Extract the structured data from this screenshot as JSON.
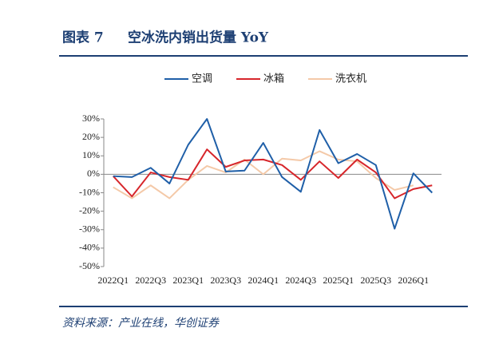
{
  "figure_label": "图表 7",
  "source": "资料来源：产业在线，华创证券",
  "chart_data": {
    "type": "line",
    "title": "空冰洗内销出货量 YoY",
    "categories": [
      "2022Q1",
      null,
      "2022Q3",
      null,
      "2023Q1",
      null,
      "2023Q3",
      null,
      "2024Q1",
      null,
      "2024Q3",
      null,
      "2025Q1",
      null,
      "2025Q3",
      null,
      "2026Q1",
      null
    ],
    "series": [
      {
        "name": "空调",
        "color": "#1f5fa8",
        "values": [
          -1,
          -1.5,
          3.5,
          -5,
          16,
          30,
          1.5,
          2,
          17,
          -1.5,
          -9.5,
          24,
          6,
          11,
          5,
          -29.5,
          0.5,
          -10
        ]
      },
      {
        "name": "冰箱",
        "color": "#d7262b",
        "values": [
          -1,
          -12,
          1,
          -1.5,
          -3,
          13.5,
          4,
          7.5,
          8,
          5,
          -3,
          7,
          -2,
          8,
          1,
          -13,
          -8,
          -6
        ]
      },
      {
        "name": "洗衣机",
        "color": "#f4c9a8",
        "values": [
          -7,
          -13,
          -6,
          -13,
          -3,
          4.5,
          1,
          8,
          0,
          8.5,
          7.5,
          12.5,
          8,
          7,
          -2,
          -8.5,
          -6,
          null
        ]
      }
    ],
    "ylim": [
      -50,
      30
    ],
    "yticks": [
      {
        "value": -50,
        "label": "-50%"
      },
      {
        "value": -40,
        "label": "-40%"
      },
      {
        "value": -30,
        "label": "-30%"
      },
      {
        "value": -20,
        "label": "-20%"
      },
      {
        "value": -10,
        "label": "-10%"
      },
      {
        "value": 0,
        "label": "0%"
      },
      {
        "value": 10,
        "label": "10%"
      },
      {
        "value": 20,
        "label": "20%"
      },
      {
        "value": 30,
        "label": "30%"
      }
    ],
    "legend": "top"
  }
}
